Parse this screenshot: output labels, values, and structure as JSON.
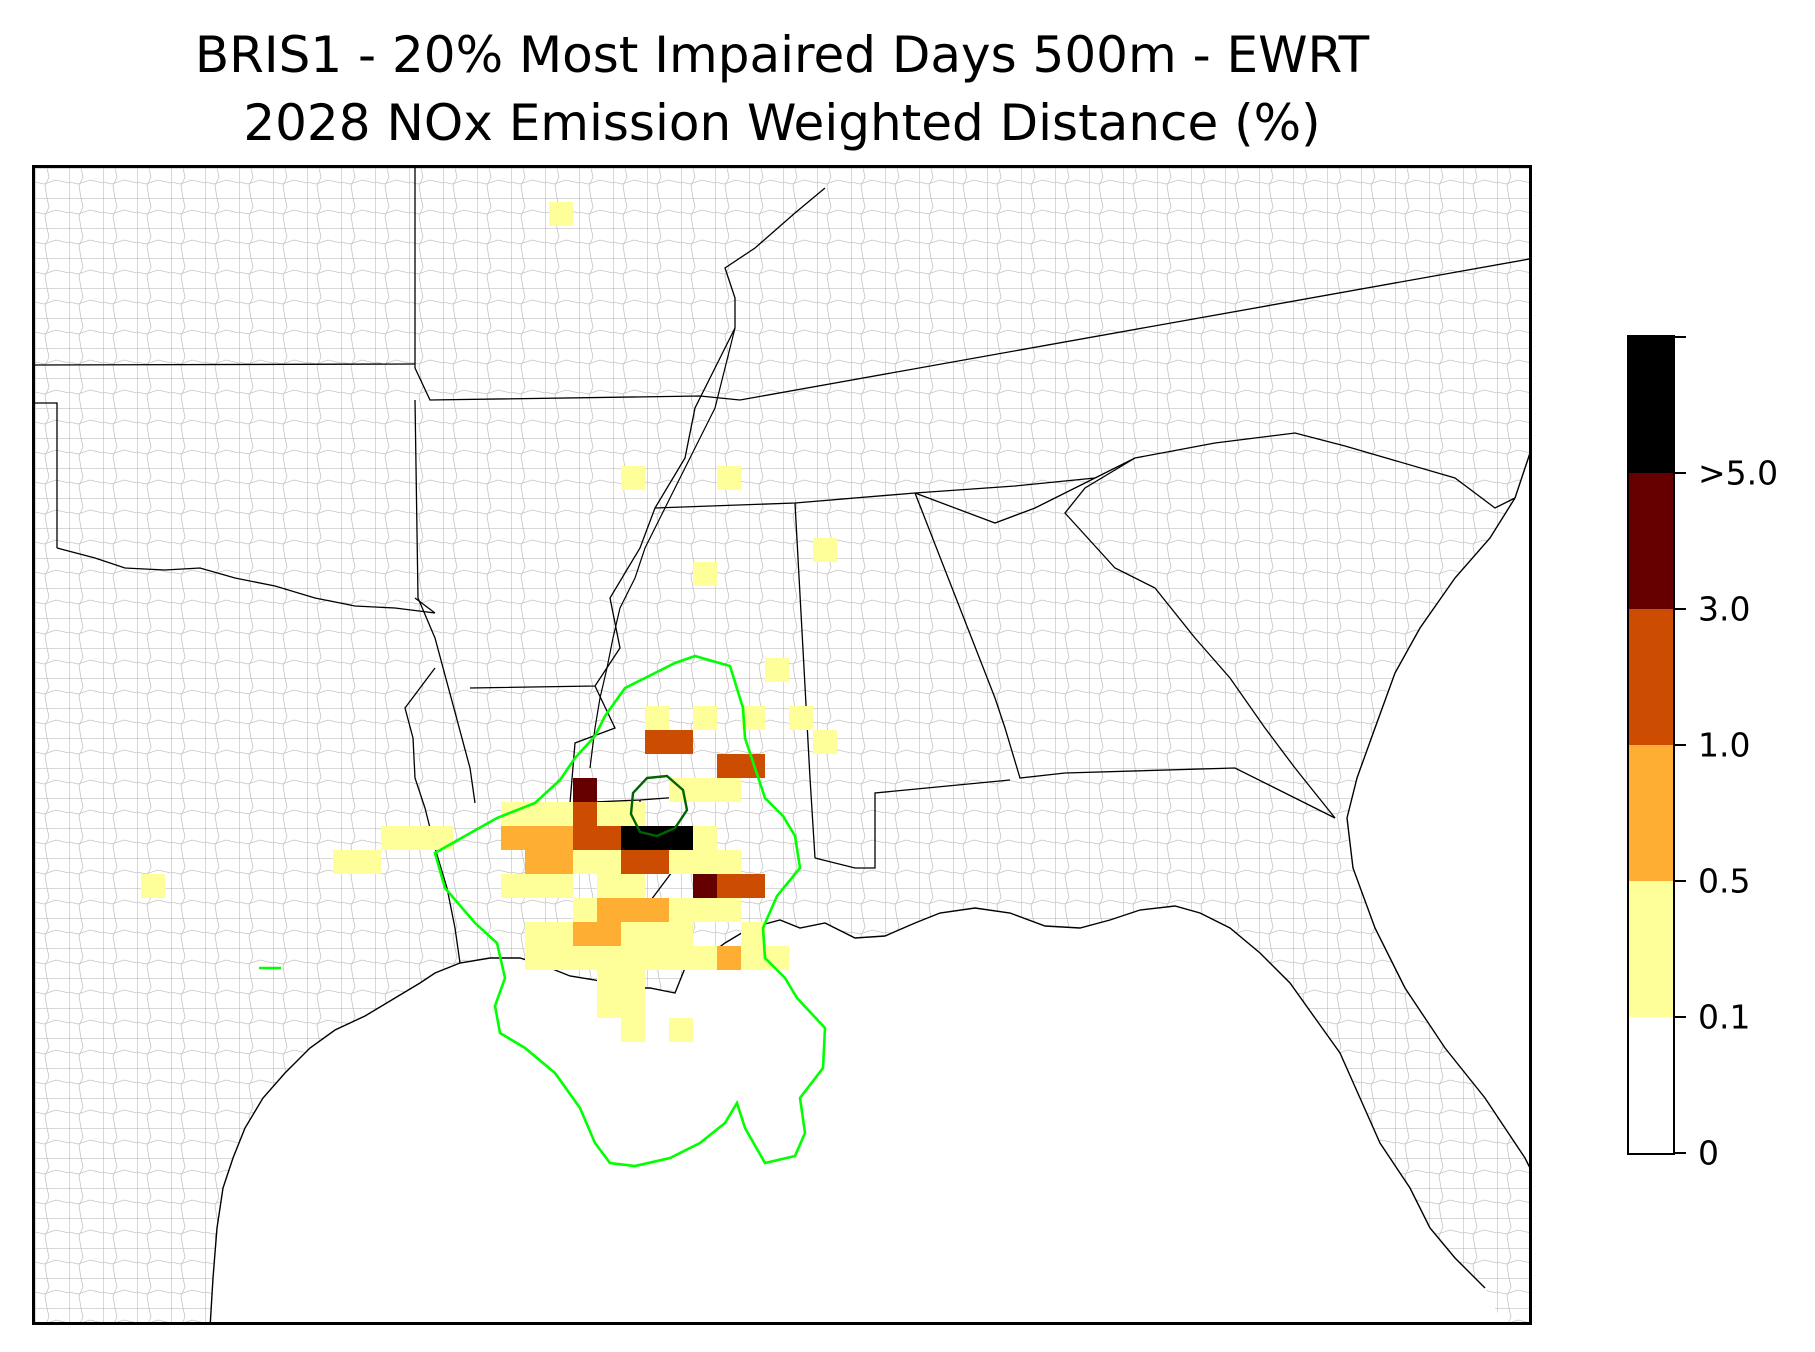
{
  "title": {
    "line1": "BRIS1 - 20% Most Impaired Days 500m - EWRT",
    "line2": "2028 NOx Emission Weighted Distance (%)"
  },
  "colorbar": {
    "bins": [
      {
        "from": "0",
        "to": "0.1",
        "color": "#ffffff"
      },
      {
        "from": "0.1",
        "to": "0.5",
        "color": "#ffff99"
      },
      {
        "from": "0.5",
        "to": "1.0",
        "color": "#fdae33"
      },
      {
        "from": "1.0",
        "to": "3.0",
        "color": "#cc4c02"
      },
      {
        "from": "3.0",
        "to": ">5.0",
        "color": "#660000"
      },
      {
        "from": ">5.0",
        "to": "",
        "color": "#000000"
      }
    ],
    "tick_labels": [
      "0",
      "0.1",
      "0.5",
      "1.0",
      "3.0",
      ">5.0"
    ]
  },
  "map": {
    "region": "Southeastern United States and Gulf of Mexico",
    "colors": {
      "state_border": "#000000",
      "county_border": "#a6a6a6",
      "outer_contour": "#00ff00",
      "inner_contour": "#006400"
    },
    "cells_legend_bin_index": "0=white,1=light yellow,2=orange,3=dark orange,4=dark red,5=black"
  }
}
